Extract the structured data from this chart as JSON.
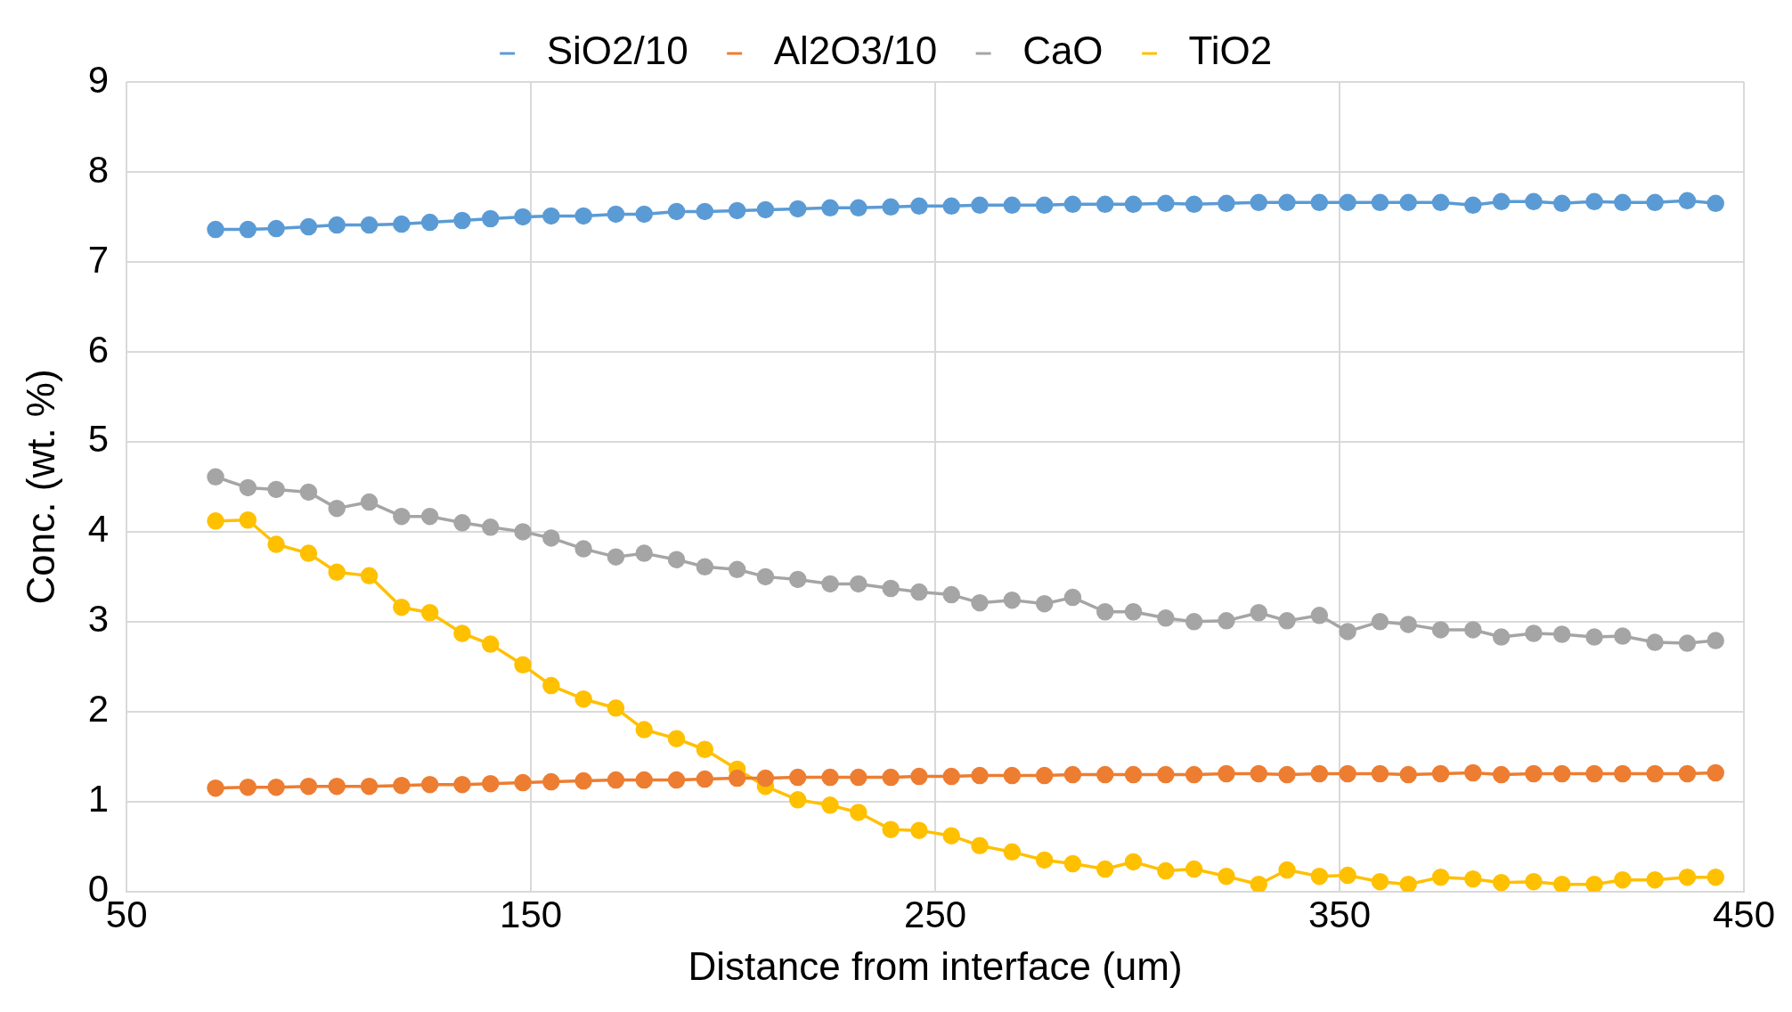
{
  "chart_data": {
    "type": "line",
    "xlabel": "Distance from interface (um)",
    "ylabel": "Conc. (wt. %)",
    "x": [
      72,
      80,
      87,
      95,
      102,
      110,
      118,
      125,
      133,
      140,
      148,
      155,
      163,
      171,
      178,
      186,
      193,
      201,
      208,
      216,
      224,
      231,
      239,
      246,
      254,
      261,
      269,
      277,
      284,
      292,
      299,
      307,
      314,
      322,
      330,
      337,
      345,
      352,
      360,
      367,
      375,
      383,
      390,
      398,
      405,
      413,
      420,
      428,
      436,
      443
    ],
    "xlim": [
      50,
      450
    ],
    "xticks": [
      50,
      150,
      250,
      350,
      450
    ],
    "ylim": [
      0,
      9
    ],
    "yticks": [
      0,
      1,
      2,
      3,
      4,
      5,
      6,
      7,
      8,
      9
    ],
    "grid": true,
    "legend": "top",
    "marker": "circle",
    "line_style": "solid",
    "series": [
      {
        "name": "SiO2/10",
        "color": "#5b9bd5",
        "values": [
          7.36,
          7.36,
          7.37,
          7.39,
          7.41,
          7.41,
          7.42,
          7.44,
          7.46,
          7.48,
          7.5,
          7.51,
          7.51,
          7.53,
          7.53,
          7.56,
          7.56,
          7.57,
          7.58,
          7.59,
          7.6,
          7.6,
          7.61,
          7.62,
          7.62,
          7.63,
          7.63,
          7.63,
          7.64,
          7.64,
          7.64,
          7.65,
          7.64,
          7.65,
          7.66,
          7.66,
          7.66,
          7.66,
          7.66,
          7.66,
          7.66,
          7.63,
          7.67,
          7.67,
          7.65,
          7.67,
          7.66,
          7.66,
          7.68,
          7.65
        ]
      },
      {
        "name": "Al2O3/10",
        "color": "#ed7d31",
        "values": [
          1.15,
          1.16,
          1.16,
          1.17,
          1.17,
          1.17,
          1.18,
          1.19,
          1.19,
          1.2,
          1.21,
          1.22,
          1.23,
          1.24,
          1.24,
          1.24,
          1.25,
          1.26,
          1.26,
          1.27,
          1.27,
          1.27,
          1.27,
          1.28,
          1.28,
          1.29,
          1.29,
          1.29,
          1.3,
          1.3,
          1.3,
          1.3,
          1.3,
          1.31,
          1.31,
          1.3,
          1.31,
          1.31,
          1.31,
          1.3,
          1.31,
          1.32,
          1.3,
          1.31,
          1.31,
          1.31,
          1.31,
          1.31,
          1.31,
          1.32
        ]
      },
      {
        "name": "CaO",
        "color": "#a5a5a5",
        "values": [
          4.61,
          4.49,
          4.47,
          4.44,
          4.26,
          4.33,
          4.17,
          4.17,
          4.1,
          4.05,
          4.0,
          3.93,
          3.81,
          3.72,
          3.76,
          3.69,
          3.61,
          3.58,
          3.5,
          3.47,
          3.42,
          3.42,
          3.37,
          3.33,
          3.3,
          3.21,
          3.24,
          3.2,
          3.27,
          3.11,
          3.11,
          3.04,
          3.0,
          3.01,
          3.1,
          3.01,
          3.07,
          2.89,
          3.0,
          2.97,
          2.91,
          2.91,
          2.83,
          2.87,
          2.86,
          2.83,
          2.84,
          2.77,
          2.76,
          2.79
        ]
      },
      {
        "name": "TiO2",
        "color": "#ffc000",
        "values": [
          4.12,
          4.13,
          3.86,
          3.76,
          3.55,
          3.51,
          3.16,
          3.1,
          2.87,
          2.75,
          2.52,
          2.29,
          2.14,
          2.04,
          1.8,
          1.7,
          1.58,
          1.36,
          1.17,
          1.02,
          0.96,
          0.88,
          0.69,
          0.68,
          0.62,
          0.51,
          0.44,
          0.35,
          0.31,
          0.25,
          0.33,
          0.23,
          0.25,
          0.17,
          0.08,
          0.24,
          0.17,
          0.18,
          0.11,
          0.08,
          0.16,
          0.14,
          0.1,
          0.11,
          0.08,
          0.08,
          0.13,
          0.13,
          0.16,
          0.16
        ]
      }
    ]
  }
}
